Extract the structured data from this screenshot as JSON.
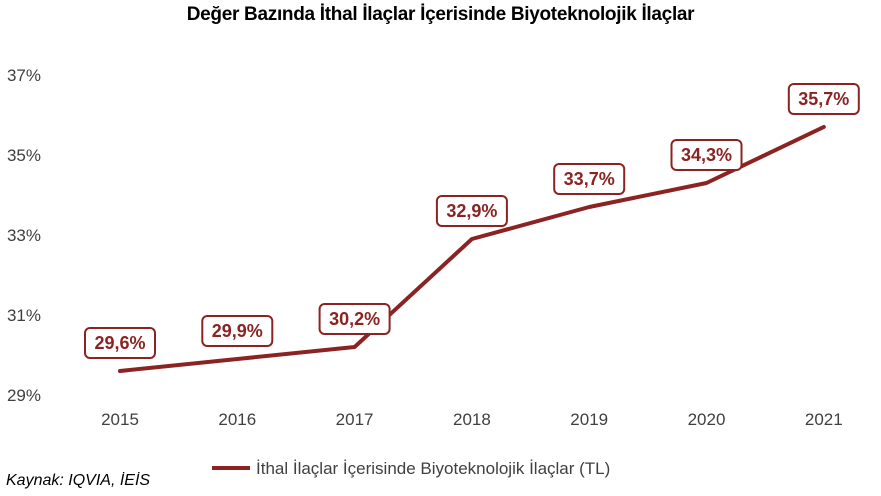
{
  "source_note": "Kaynak: IQVIA, İEİS",
  "colors": {
    "series": "#8b2323",
    "label_fill": "#ffffff",
    "axis_text": "#404040",
    "title": "#000000"
  },
  "chart_data": {
    "type": "line",
    "title": "Değer Bazında İthal İlaçlar İçerisinde Biyoteknolojik İlaçlar",
    "xlabel": "",
    "ylabel": "",
    "categories": [
      "2015",
      "2016",
      "2017",
      "2018",
      "2019",
      "2020",
      "2021"
    ],
    "y_ticks": [
      29,
      31,
      33,
      35,
      37
    ],
    "y_tick_labels": [
      "29%",
      "31%",
      "33%",
      "35%",
      "37%"
    ],
    "ylim": [
      29,
      37
    ],
    "grid": false,
    "legend_position": "bottom",
    "series": [
      {
        "name": "İthal İlaçlar İçerisinde Biyoteknolojik İlaçlar (TL)",
        "values": [
          29.6,
          29.9,
          30.2,
          32.9,
          33.7,
          34.3,
          35.7
        ],
        "data_labels": [
          "29,6%",
          "29,9%",
          "30,2%",
          "32,9%",
          "33,7%",
          "34,3%",
          "35,7%"
        ]
      }
    ]
  }
}
